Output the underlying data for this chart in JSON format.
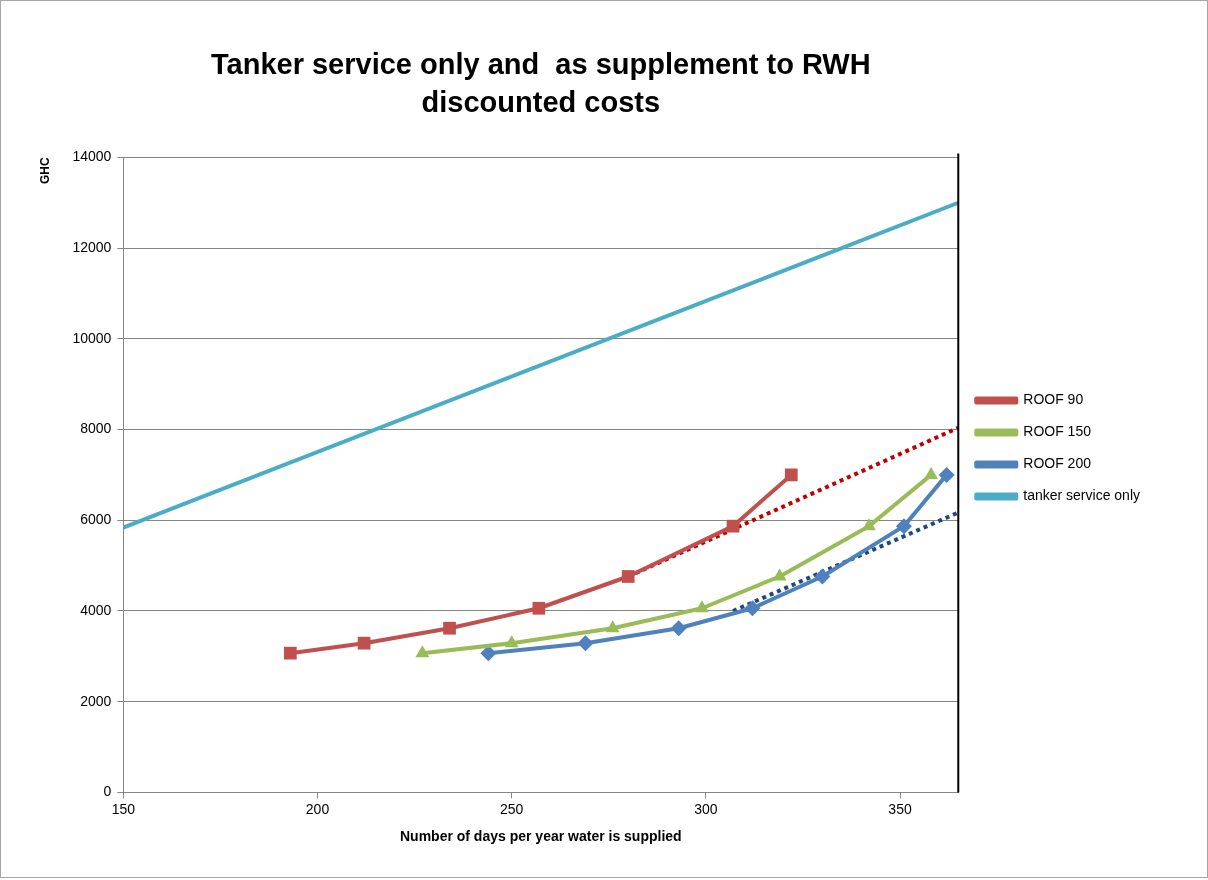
{
  "chart_data": {
    "type": "line",
    "title": "Tanker service only and  as supplement to RWH\ndiscounted costs",
    "xlabel": "Number of days per year water is supplied",
    "ylabel": "GHC",
    "xlim": [
      150,
      365
    ],
    "xticks": [
      150,
      200,
      250,
      300,
      350
    ],
    "ylim": [
      0,
      14000
    ],
    "yticks": [
      0,
      2000,
      4000,
      6000,
      8000,
      10000,
      12000,
      14000
    ],
    "grid": "y",
    "legend": "right",
    "series": [
      {
        "name": "ROOF 90",
        "color": "#c0504d",
        "marker": "square",
        "x": [
          193,
          212,
          234,
          257,
          280,
          307,
          322
        ],
        "values": [
          3070,
          3290,
          3620,
          4060,
          4760,
          5870,
          7000
        ]
      },
      {
        "name": "ROOF 150",
        "color": "#9bbb59",
        "marker": "triangle",
        "x": [
          227,
          250,
          276,
          299,
          319,
          342,
          358
        ],
        "values": [
          3070,
          3290,
          3620,
          4060,
          4760,
          5870,
          7000
        ]
      },
      {
        "name": "ROOF 200",
        "color": "#4f81bd",
        "marker": "diamond",
        "x": [
          244,
          269,
          293,
          312,
          330,
          351,
          362
        ],
        "values": [
          3070,
          3290,
          3620,
          4060,
          4760,
          5870,
          7000
        ]
      },
      {
        "name": "tanker service only",
        "color": "#4bacc6",
        "marker": "none",
        "x": [
          150,
          365
        ],
        "values": [
          5840,
          13000
        ]
      },
      {
        "type": "line",
        "color": "#c00000",
        "marker": "none",
        "line_style": "dotted",
        "x": [
          280,
          365
        ],
        "values": [
          4760,
          8040
        ]
      },
      {
        "type": "line",
        "color": "#1f497d",
        "marker": "none",
        "line_style": "dotted",
        "x": [
          307,
          365
        ],
        "values": [
          4000,
          6170
        ]
      }
    ]
  }
}
